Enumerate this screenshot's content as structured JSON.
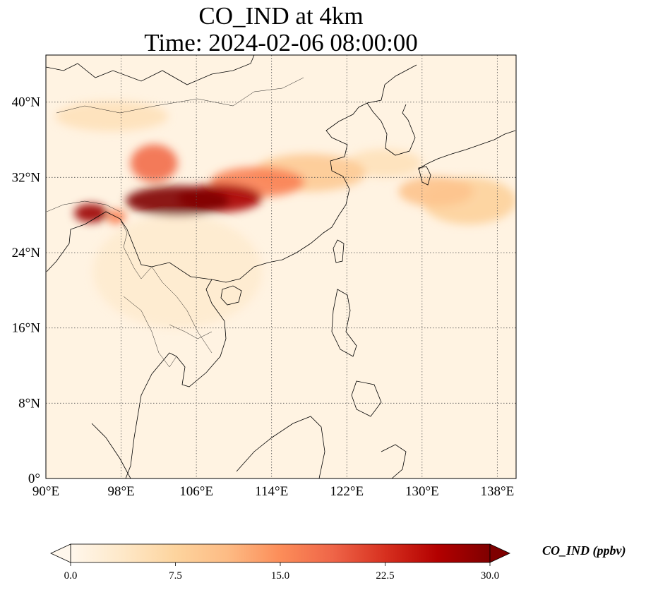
{
  "title": {
    "line1": "CO_IND at 4km",
    "line2": "Time: 2024-02-06 08:00:00"
  },
  "map": {
    "extent": {
      "lon_min": 90,
      "lon_max": 140,
      "lat_min": 0,
      "lat_max": 45
    },
    "gridlines": true,
    "lon_ticks": [
      {
        "value": 90,
        "label": "90°E"
      },
      {
        "value": 98,
        "label": "98°E"
      },
      {
        "value": 106,
        "label": "106°E"
      },
      {
        "value": 114,
        "label": "114°E"
      },
      {
        "value": 122,
        "label": "122°E"
      },
      {
        "value": 130,
        "label": "130°E"
      },
      {
        "value": 138,
        "label": "138°E"
      }
    ],
    "lat_ticks": [
      {
        "value": 0,
        "label": "0°"
      },
      {
        "value": 8,
        "label": "8°N"
      },
      {
        "value": 16,
        "label": "16°N"
      },
      {
        "value": 24,
        "label": "24°N"
      },
      {
        "value": 32,
        "label": "32°N"
      },
      {
        "value": 40,
        "label": "40°N"
      }
    ],
    "plumes": [
      {
        "lon": 104.0,
        "lat": 29.5,
        "value": 30,
        "rx_deg": 5.5,
        "ry_deg": 1.6
      },
      {
        "lon": 108.5,
        "lat": 29.8,
        "value": 27,
        "rx_deg": 4.5,
        "ry_deg": 1.5
      },
      {
        "lon": 112.5,
        "lat": 31.5,
        "value": 16,
        "rx_deg": 5.0,
        "ry_deg": 1.6
      },
      {
        "lon": 118.0,
        "lat": 32.5,
        "value": 9,
        "rx_deg": 6.0,
        "ry_deg": 2.0
      },
      {
        "lon": 101.5,
        "lat": 33.5,
        "value": 18,
        "rx_deg": 2.5,
        "ry_deg": 2.0
      },
      {
        "lon": 94.8,
        "lat": 28.2,
        "value": 28,
        "rx_deg": 1.8,
        "ry_deg": 1.0
      },
      {
        "lon": 97.5,
        "lat": 27.8,
        "value": 16,
        "rx_deg": 1.0,
        "ry_deg": 0.8
      },
      {
        "lon": 97.0,
        "lat": 38.5,
        "value": 5,
        "rx_deg": 6.0,
        "ry_deg": 1.6
      },
      {
        "lon": 131.5,
        "lat": 30.5,
        "value": 10,
        "rx_deg": 4.0,
        "ry_deg": 1.6
      },
      {
        "lon": 135.0,
        "lat": 29.5,
        "value": 8,
        "rx_deg": 5.0,
        "ry_deg": 2.5
      },
      {
        "lon": 126.0,
        "lat": 33.5,
        "value": 5,
        "rx_deg": 4.0,
        "ry_deg": 1.5
      },
      {
        "lon": 104.0,
        "lat": 22.0,
        "value": 3,
        "rx_deg": 9.0,
        "ry_deg": 6.0
      }
    ]
  },
  "colorbar": {
    "label": "CO_IND (ppbv)",
    "min": 0,
    "max": 30,
    "extend": "both",
    "ticks": [
      "0.0",
      "7.5",
      "15.0",
      "22.5",
      "30.0"
    ],
    "colors": [
      "#fff7ec",
      "#fee8c8",
      "#fdd49e",
      "#fdbb84",
      "#fc8d59",
      "#ef6548",
      "#d7301f",
      "#b30000",
      "#7f0000"
    ]
  }
}
